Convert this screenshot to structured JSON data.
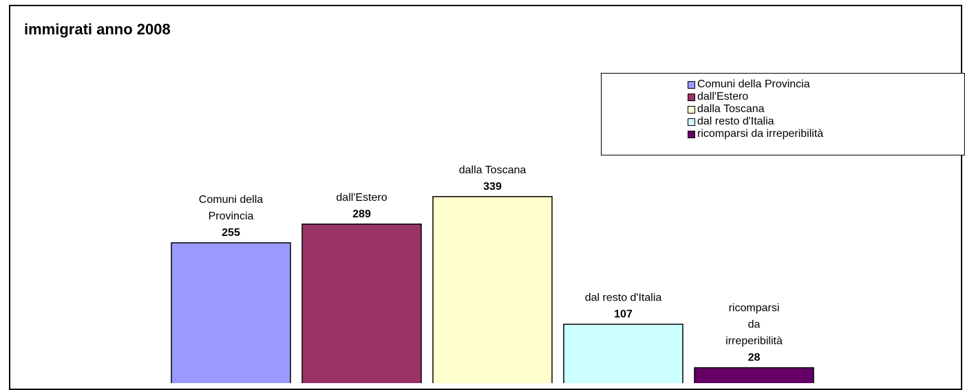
{
  "chart_data": {
    "type": "bar",
    "title": "immigrati anno 2008",
    "xlabel": "",
    "ylabel": "",
    "ylim": [
      0,
      420
    ],
    "grid": false,
    "legend_position": "top-right",
    "categories": [
      "Comuni della Provincia",
      "dall'Estero",
      "dalla Toscana",
      "dal resto d'Italia",
      "ricomparsi da irreperibilità"
    ],
    "category_label_lines": [
      [
        "Comuni della",
        "Provincia"
      ],
      [
        "dall'Estero"
      ],
      [
        "dalla Toscana"
      ],
      [
        "dal resto d'Italia"
      ],
      [
        "ricomparsi",
        "da",
        "irreperibilità"
      ]
    ],
    "values": [
      255,
      289,
      339,
      107,
      28
    ],
    "colors": [
      "#9999ff",
      "#993366",
      "#ffffcc",
      "#ccffff",
      "#660066"
    ]
  }
}
